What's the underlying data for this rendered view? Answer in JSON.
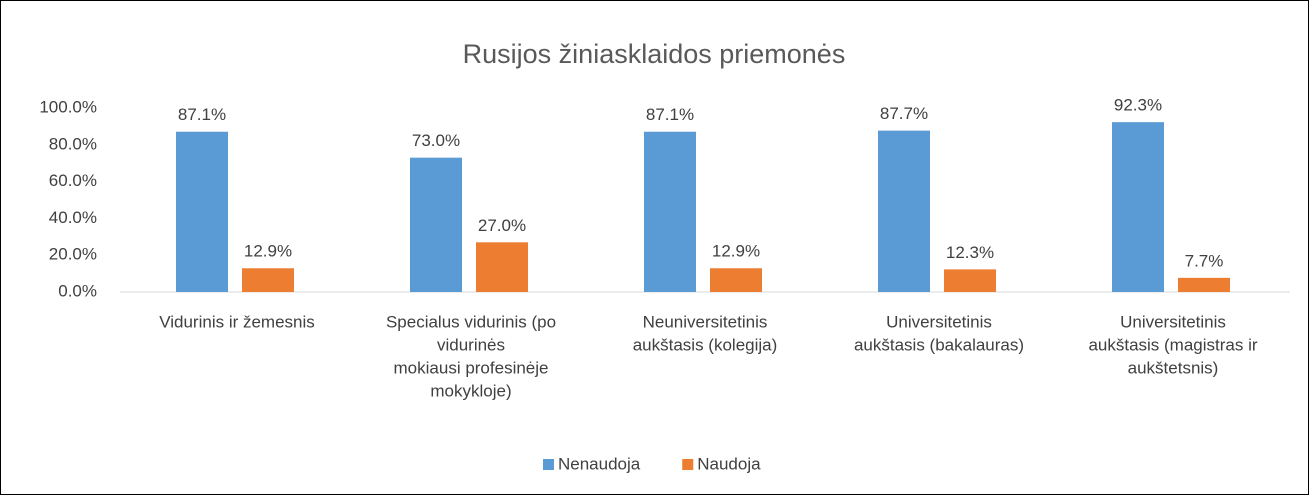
{
  "chart_data": {
    "type": "bar",
    "title": "Rusijos žiniasklaidos priemonės",
    "categories": [
      [
        "Vidurinis ir žemesnis"
      ],
      [
        "Specialus vidurinis (po",
        "vidurinės",
        "mokiausi profesinėje",
        "mokykloje)"
      ],
      [
        "Neuniversitetinis",
        "aukštasis (kolegija)"
      ],
      [
        "Universitetinis",
        "aukštasis (bakalauras)"
      ],
      [
        "Universitetinis",
        "aukštasis (magistras ir",
        "aukštetsnis)"
      ]
    ],
    "series": [
      {
        "name": "Nenaudoja",
        "color": "#5b9bd5",
        "values": [
          87.1,
          73.0,
          87.1,
          87.7,
          92.3
        ],
        "value_labels": [
          "87.1%",
          "73.0%",
          "87.1%",
          "87.7%",
          "92.3%"
        ]
      },
      {
        "name": "Naudoja",
        "color": "#ed7d31",
        "values": [
          12.9,
          27.0,
          12.9,
          12.3,
          7.7
        ],
        "value_labels": [
          "12.9%",
          "27.0%",
          "12.9%",
          "12.3%",
          "7.7%"
        ]
      }
    ],
    "ylim": [
      0,
      100
    ],
    "yticks": [
      {
        "value": 0,
        "label": "0.0%"
      },
      {
        "value": 20,
        "label": "20.0%"
      },
      {
        "value": 40,
        "label": "40.0%"
      },
      {
        "value": 60,
        "label": "60.0%"
      },
      {
        "value": 80,
        "label": "80.0%"
      },
      {
        "value": 100,
        "label": "100.0%"
      }
    ],
    "grid": false,
    "legend": "bottom"
  }
}
